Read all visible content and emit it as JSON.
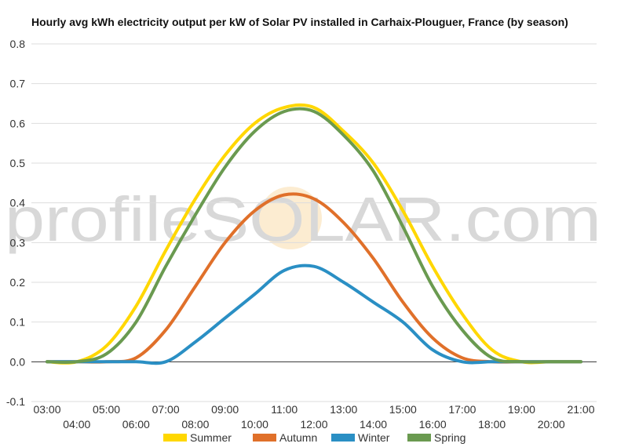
{
  "chart_data": {
    "type": "line",
    "title": "Hourly avg kWh electricity output per kW of Solar PV installed in Carhaix-Plouguer, France (by season)",
    "xlabel": "",
    "ylabel": "",
    "ylim": [
      -0.1,
      0.8
    ],
    "yticks": [
      "0.8",
      "0.7",
      "0.6",
      "0.5",
      "0.4",
      "0.3",
      "0.2",
      "0.1",
      "0.0",
      "-0.1"
    ],
    "xtick_labels": [
      "03:00",
      "04:00",
      "05:00",
      "06:00",
      "07:00",
      "08:00",
      "09:00",
      "10:00",
      "11:00",
      "12:00",
      "13:00",
      "14:00",
      "15:00",
      "16:00",
      "17:00",
      "18:00",
      "19:00",
      "20:00",
      "21:00"
    ],
    "grid": true,
    "legend_position": "bottom",
    "watermark": "profileSOLAR.com",
    "series": [
      {
        "name": "Summer",
        "color": "#FFD700",
        "values": [
          0.0,
          0.0,
          0.04,
          0.14,
          0.28,
          0.41,
          0.52,
          0.6,
          0.64,
          0.64,
          0.58,
          0.5,
          0.38,
          0.24,
          0.12,
          0.03,
          0.0,
          0.0,
          0.0
        ]
      },
      {
        "name": "Autumn",
        "color": "#E0702A",
        "values": [
          0.0,
          0.0,
          0.0,
          0.01,
          0.08,
          0.19,
          0.3,
          0.38,
          0.42,
          0.41,
          0.35,
          0.26,
          0.15,
          0.06,
          0.01,
          0.0,
          0.0,
          0.0,
          0.0
        ]
      },
      {
        "name": "Winter",
        "color": "#2A8FC4",
        "values": [
          0.0,
          0.0,
          0.0,
          0.0,
          0.0,
          0.05,
          0.11,
          0.17,
          0.23,
          0.24,
          0.2,
          0.15,
          0.1,
          0.03,
          0.0,
          0.0,
          0.0,
          0.0,
          0.0
        ]
      },
      {
        "name": "Spring",
        "color": "#6A9A50",
        "values": [
          0.0,
          0.0,
          0.02,
          0.1,
          0.24,
          0.37,
          0.49,
          0.58,
          0.63,
          0.63,
          0.57,
          0.48,
          0.34,
          0.19,
          0.08,
          0.01,
          0.0,
          0.0,
          0.0
        ]
      }
    ]
  }
}
